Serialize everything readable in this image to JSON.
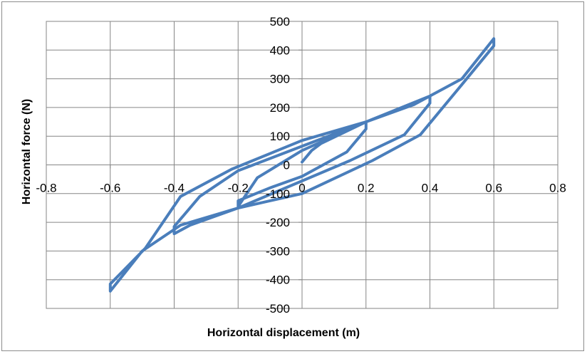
{
  "chart_data": {
    "type": "line",
    "title": "",
    "xlabel": "Horizontal displacement (m)",
    "ylabel": "Horizontal force (N)",
    "xlim": [
      -0.8,
      0.8
    ],
    "ylim": [
      -500,
      500
    ],
    "x_ticks": [
      -0.8,
      -0.6,
      -0.4,
      -0.2,
      0,
      0.2,
      0.4,
      0.6,
      0.8
    ],
    "y_ticks": [
      -500,
      -400,
      -300,
      -200,
      -100,
      0,
      100,
      200,
      300,
      400,
      500
    ],
    "x_tick_labels": [
      "-0.8",
      "-0.6",
      "-0.4",
      "-0.2",
      "0",
      "0.2",
      "0.4",
      "0.6",
      "0.8"
    ],
    "y_tick_labels": [
      "-500",
      "-400",
      "-300",
      "-200",
      "-100",
      "0",
      "100",
      "200",
      "300",
      "400",
      "500"
    ],
    "grid": true,
    "legend": "none",
    "series_color": "#4a7ebb",
    "series": [
      {
        "points": [
          [
            0.0,
            10
          ],
          [
            0.03,
            50
          ],
          [
            0.06,
            75
          ],
          [
            0.2,
            150
          ],
          [
            0.2,
            125
          ],
          [
            0.14,
            45
          ],
          [
            0.0,
            -40
          ],
          [
            -0.1,
            -80
          ],
          [
            -0.2,
            -125
          ],
          [
            -0.2,
            -145
          ],
          [
            -0.14,
            -45
          ],
          [
            0.0,
            50
          ],
          [
            0.2,
            150
          ],
          [
            0.35,
            210
          ],
          [
            0.4,
            240
          ],
          [
            0.4,
            215
          ],
          [
            0.32,
            105
          ],
          [
            0.15,
            15
          ],
          [
            -0.2,
            -150
          ],
          [
            -0.35,
            -210
          ],
          [
            -0.4,
            -240
          ],
          [
            -0.4,
            -215
          ],
          [
            -0.32,
            -110
          ],
          [
            -0.2,
            -20
          ],
          [
            0.0,
            65
          ],
          [
            0.2,
            150
          ],
          [
            0.4,
            240
          ],
          [
            0.5,
            300
          ],
          [
            0.6,
            440
          ],
          [
            0.6,
            415
          ],
          [
            0.5,
            280
          ],
          [
            0.37,
            105
          ],
          [
            0.22,
            15
          ],
          [
            0.0,
            -100
          ],
          [
            -0.2,
            -150
          ],
          [
            -0.38,
            -210
          ],
          [
            -0.5,
            -300
          ],
          [
            -0.6,
            -440
          ],
          [
            -0.6,
            -415
          ],
          [
            -0.49,
            -290
          ],
          [
            -0.38,
            -110
          ],
          [
            -0.22,
            -15
          ],
          [
            0.0,
            85
          ],
          [
            0.2,
            150
          ]
        ]
      }
    ]
  }
}
